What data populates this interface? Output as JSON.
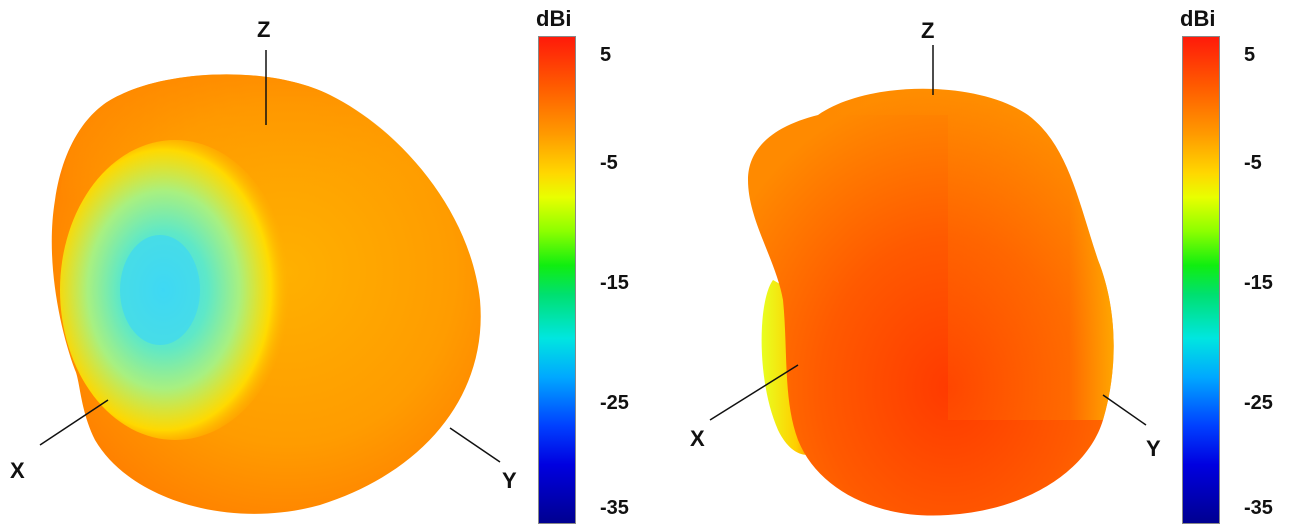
{
  "left_plot": {
    "axis_labels": {
      "z": "Z",
      "x": "X",
      "y": "Y"
    },
    "colorbar": {
      "unit": "dBi",
      "ticks": [
        "5",
        "-5",
        "-15",
        "-25",
        "-35"
      ]
    }
  },
  "right_plot": {
    "axis_labels": {
      "z": "Z",
      "x": "X",
      "y": "Y"
    },
    "colorbar": {
      "unit": "dBi",
      "ticks": [
        "5",
        "-5",
        "-15",
        "-25",
        "-35"
      ]
    }
  },
  "colors": {
    "max": "#ff1a0a",
    "orange": "#ff9a00",
    "yellow": "#ffd700",
    "green": "#10ee10",
    "cyan": "#00e6e0",
    "blue": "#0040ff",
    "min": "#000090"
  }
}
